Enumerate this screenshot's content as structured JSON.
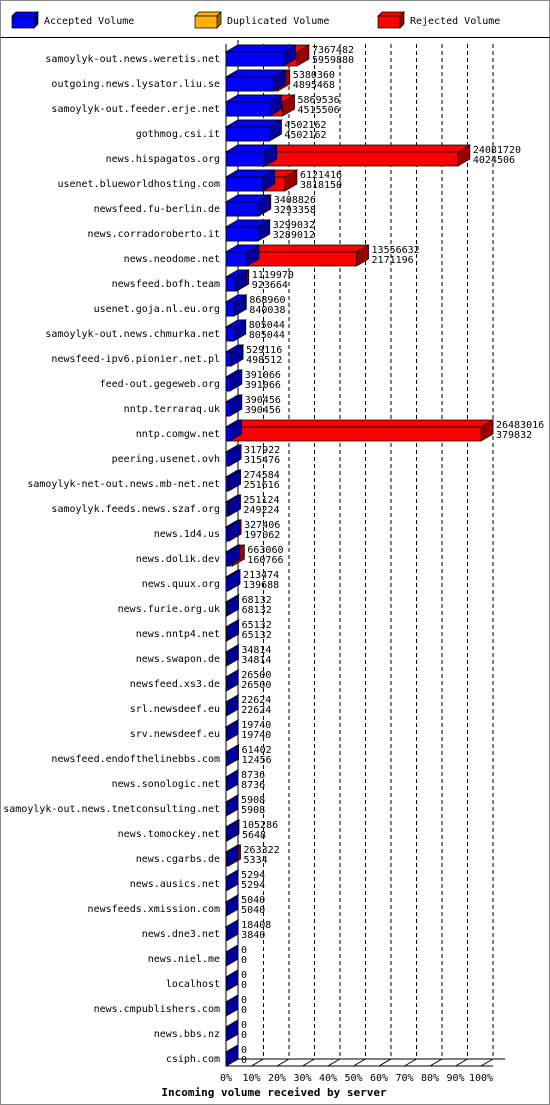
{
  "chart_data": {
    "type": "bar3d-horizontal",
    "x_label": "Incoming volume received by server",
    "categories": [
      "samoylyk-out.news.weretis.net",
      "outgoing.news.lysator.liu.se",
      "samoylyk-out.feeder.erje.net",
      "gothmog.csi.it",
      "news.hispagatos.org",
      "usenet.blueworldhosting.com",
      "newsfeed.fu-berlin.de",
      "news.corradoroberto.it",
      "news.neodome.net",
      "newsfeed.bofh.team",
      "usenet.goja.nl.eu.org",
      "samoylyk-out.news.chmurka.net",
      "newsfeed-ipv6.pionier.net.pl",
      "feed-out.gegeweb.org",
      "nntp.terraraq.uk",
      "nntp.comgw.net",
      "peering.usenet.ovh",
      "samoylyk-net-out.news.mb-net.net",
      "samoylyk.feeds.news.szaf.org",
      "news.1d4.us",
      "news.dolik.dev",
      "news.quux.org",
      "news.furie.org.uk",
      "news.nntp4.net",
      "news.swapon.de",
      "newsfeed.xs3.de",
      "srl.newsdeef.eu",
      "srv.newsdeef.eu",
      "newsfeed.endofthelinebbs.com",
      "news.sonologic.net",
      "samoylyk-out.news.tnetconsulting.net",
      "news.tomockey.net",
      "news.cgarbs.de",
      "news.ausics.net",
      "newsfeeds.xmission.com",
      "news.dne3.net",
      "news.niel.me",
      "localhost",
      "news.cmpublishers.com",
      "news.bbs.nz",
      "csiph.com"
    ],
    "series": [
      {
        "name": "Accepted Volume",
        "color": "#0000ff",
        "values": [
          5959880,
          4895468,
          4515506,
          4502162,
          4024506,
          3818150,
          3293358,
          3289012,
          2171196,
          923664,
          840038,
          805044,
          498512,
          391066,
          390456,
          379832,
          315476,
          251616,
          249224,
          197062,
          160766,
          139688,
          68132,
          65132,
          34814,
          26500,
          22624,
          19740,
          12456,
          8736,
          5908,
          5648,
          5334,
          5294,
          5040,
          3840,
          0,
          0,
          0,
          0,
          0
        ]
      },
      {
        "name": "Duplicated Volume",
        "color": "#ffb000",
        "values": [
          0,
          0,
          0,
          0,
          0,
          0,
          0,
          0,
          0,
          0,
          0,
          0,
          0,
          0,
          0,
          0,
          0,
          0,
          0,
          0,
          0,
          0,
          0,
          0,
          0,
          0,
          0,
          0,
          0,
          0,
          0,
          0,
          0,
          0,
          0,
          0,
          0,
          0,
          0,
          0,
          0
        ]
      },
      {
        "name": "Rejected Volume",
        "color": "#ff0000",
        "values": [
          7367482,
          5380360,
          5869536,
          4502162,
          24081720,
          6121416,
          3408826,
          3299032,
          13556632,
          1119970,
          868960,
          805044,
          529116,
          391066,
          390456,
          26483016,
          317922,
          274584,
          251124,
          327406,
          663060,
          213474,
          68132,
          65132,
          34814,
          26500,
          22624,
          19740,
          61402,
          8736,
          5908,
          105286,
          263322,
          5294,
          5040,
          18408,
          0,
          0,
          0,
          0,
          0
        ]
      }
    ],
    "xlim": [
      0,
      26483016
    ],
    "xticks": [
      {
        "value": 0,
        "label": "0%"
      },
      {
        "value": 2648301.6,
        "label": "10%"
      },
      {
        "value": 5296603.2,
        "label": "20%"
      },
      {
        "value": 7944904.8,
        "label": "30%"
      },
      {
        "value": 10593206.4,
        "label": "40%"
      },
      {
        "value": 13241508,
        "label": "50%"
      },
      {
        "value": 15889809.6,
        "label": "60%"
      },
      {
        "value": 18538111.2,
        "label": "70%"
      },
      {
        "value": 21186412.8,
        "label": "80%"
      },
      {
        "value": 23834714.4,
        "label": "90%"
      },
      {
        "value": 26483016,
        "label": "100%"
      }
    ],
    "grid": true
  }
}
